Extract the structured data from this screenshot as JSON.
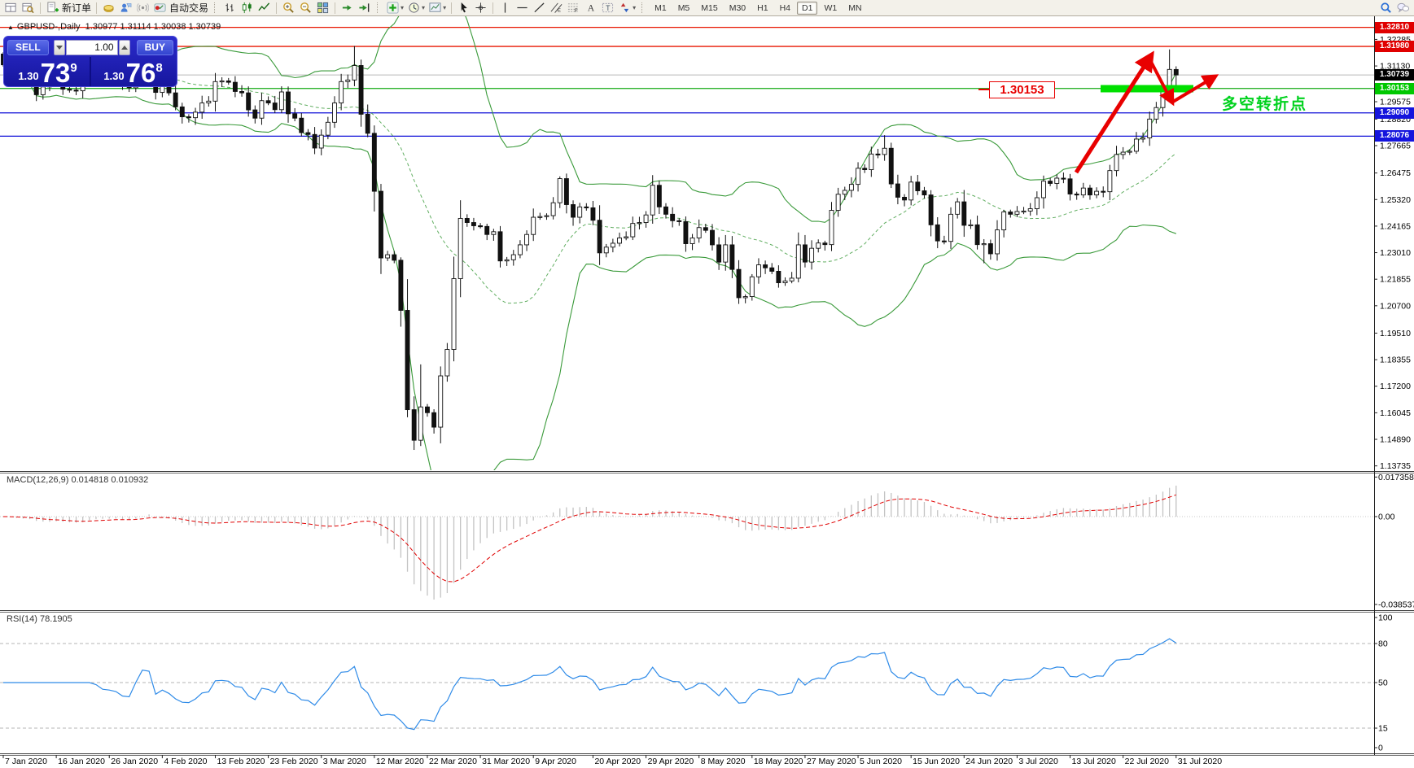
{
  "toolbar": {
    "groups": [
      {
        "items": [
          {
            "n": "new-chart-icon",
            "ic": "newchart"
          },
          {
            "n": "profiles-icon",
            "ic": "profiles"
          }
        ]
      },
      {
        "items": [
          {
            "n": "new-order-button",
            "ic": "neworder",
            "l": "新订单"
          }
        ]
      },
      {
        "items": [
          {
            "n": "metaeditor-icon",
            "ic": "sponge"
          },
          {
            "n": "community-icon",
            "ic": "person"
          },
          {
            "n": "news-icon",
            "ic": "broadcast"
          },
          {
            "n": "autotrade-button",
            "ic": "autotrade",
            "l": "自动交易"
          }
        ]
      },
      {
        "items": [
          {
            "n": "bar-chart-icon",
            "ic": "bars"
          },
          {
            "n": "candlestick-chart-icon",
            "ic": "candles"
          },
          {
            "n": "line-chart-icon",
            "ic": "linechart"
          }
        ]
      },
      {
        "items": [
          {
            "n": "zoom-in-icon",
            "ic": "zoomin"
          },
          {
            "n": "zoom-out-icon",
            "ic": "zoomout"
          },
          {
            "n": "tile-windows-icon",
            "ic": "tile"
          }
        ]
      },
      {
        "items": [
          {
            "n": "auto-scroll-icon",
            "ic": "autoscroll"
          },
          {
            "n": "chart-shift-icon",
            "ic": "shift"
          }
        ]
      },
      {
        "items": [
          {
            "n": "indicators-icon",
            "ic": "indicators",
            "dd": true
          },
          {
            "n": "periods-icon",
            "ic": "clock",
            "dd": true
          },
          {
            "n": "templates-icon",
            "ic": "template",
            "dd": true
          }
        ]
      },
      {
        "items": [
          {
            "n": "cursor-icon",
            "ic": "cursor"
          },
          {
            "n": "crosshair-icon",
            "ic": "crosshair"
          }
        ]
      },
      {
        "items": [
          {
            "n": "vline-icon",
            "ic": "vline"
          },
          {
            "n": "hline-icon",
            "ic": "hline"
          },
          {
            "n": "trendline-icon",
            "ic": "trendline"
          },
          {
            "n": "channel-icon",
            "ic": "channel"
          },
          {
            "n": "fibonacci-icon",
            "ic": "fibo"
          },
          {
            "n": "text-icon",
            "ic": "textA"
          },
          {
            "n": "label-icon",
            "ic": "labelT"
          },
          {
            "n": "arrows-icon",
            "ic": "arrowsTool",
            "dd": true
          }
        ]
      }
    ],
    "timeframes": {
      "items": [
        "M1",
        "M5",
        "M15",
        "M30",
        "H1",
        "H4",
        "D1",
        "W1",
        "MN"
      ],
      "active": "D1"
    },
    "right_icons": [
      {
        "n": "search-icon",
        "ic": "search"
      },
      {
        "n": "chat-icon",
        "ic": "chat"
      }
    ]
  },
  "chart": {
    "collapse_marker": "▲",
    "title_symbol": "GBPUSD-,Daily",
    "title_ohlc": "1.30977 1.31114 1.30038 1.30739"
  },
  "trade_panel": {
    "sell_label": "SELL",
    "buy_label": "BUY",
    "volume": "1.00",
    "sell_price": {
      "prefix": "1.30",
      "big": "73",
      "sup": "9"
    },
    "buy_price": {
      "prefix": "1.30",
      "big": "76",
      "sup": "8"
    }
  },
  "colors": {
    "line_red": "#e81600",
    "line_green": "#2db32d",
    "line_blue": "#0d0dd8",
    "current_price_line": "#b8b8b8",
    "badge_red": "#e00000",
    "badge_black": "#000000",
    "badge_green": "#00c800",
    "badge_blue": "#1414dd",
    "bollinger_green": "#3a9a3a",
    "candle_up": "#ffffff",
    "candle_down": "#111111",
    "macd_histogram": "#c3c3c3",
    "macd_signal": "#e00000",
    "rsi_blue": "#2f8be8",
    "annotation_red": "#e80000",
    "annotation_green": "#00e000",
    "cn_text_green": "#00d21e"
  },
  "hlines": [
    {
      "price": 1.3281,
      "color_key": "line_red"
    },
    {
      "price": 1.3198,
      "color_key": "line_red"
    },
    {
      "price": 1.30739,
      "color_key": "current_price_line"
    },
    {
      "price": 1.30153,
      "color_key": "line_green"
    },
    {
      "price": 1.2909,
      "color_key": "line_blue"
    },
    {
      "price": 1.28076,
      "color_key": "line_blue"
    }
  ],
  "price_axis": {
    "badges": [
      {
        "text": "1.32810",
        "price": 1.3281,
        "bg": "badge_red"
      },
      {
        "text": "1.31980",
        "price": 1.3198,
        "bg": "badge_red"
      },
      {
        "text": "1.30739",
        "price": 1.30739,
        "bg": "badge_black"
      },
      {
        "text": "1.30153",
        "price": 1.30153,
        "bg": "badge_green"
      },
      {
        "text": "1.29090",
        "price": 1.2909,
        "bg": "badge_blue"
      },
      {
        "text": "1.28076",
        "price": 1.28076,
        "bg": "badge_blue"
      }
    ],
    "ticks": [
      "1.32285",
      "1.31130",
      "1.29575",
      "1.28820",
      "1.27665",
      "1.26475",
      "1.25320",
      "1.24165",
      "1.23010",
      "1.21855",
      "1.20700",
      "1.19510",
      "1.18355",
      "1.17200",
      "1.16045",
      "1.14890",
      "1.13735"
    ]
  },
  "annotations": {
    "price_callout": "1.30153",
    "turning_point_text": "多空转折点"
  },
  "macd": {
    "label": "MACD(12,26,9) 0.014818 0.010932",
    "axis_labels": [
      "0.017358",
      "0.00",
      "-0.038537"
    ]
  },
  "rsi": {
    "label": "RSI(14) 78.1905",
    "axis_labels": [
      100,
      80,
      50,
      15,
      0
    ],
    "dashed_levels": [
      80,
      50,
      15
    ]
  },
  "dates": [
    {
      "t": "7 Jan 2020",
      "i": 0
    },
    {
      "t": "16 Jan 2020",
      "i": 8
    },
    {
      "t": "26 Jan 2020",
      "i": 16
    },
    {
      "t": "4 Feb 2020",
      "i": 24
    },
    {
      "t": "13 Feb 2020",
      "i": 32
    },
    {
      "t": "23 Feb 2020",
      "i": 40
    },
    {
      "t": "3 Mar 2020",
      "i": 48
    },
    {
      "t": "12 Mar 2020",
      "i": 56
    },
    {
      "t": "22 Mar 2020",
      "i": 64
    },
    {
      "t": "31 Mar 2020",
      "i": 72
    },
    {
      "t": "9 Apr 2020",
      "i": 80
    },
    {
      "t": "20 Apr 2020",
      "i": 89
    },
    {
      "t": "29 Apr 2020",
      "i": 97
    },
    {
      "t": "8 May 2020",
      "i": 105
    },
    {
      "t": "18 May 2020",
      "i": 113
    },
    {
      "t": "27 May 2020",
      "i": 121
    },
    {
      "t": "5 Jun 2020",
      "i": 129
    },
    {
      "t": "15 Jun 2020",
      "i": 137
    },
    {
      "t": "24 Jun 2020",
      "i": 145
    },
    {
      "t": "3 Jul 2020",
      "i": 153
    },
    {
      "t": "13 Jul 2020",
      "i": 161
    },
    {
      "t": "22 Jul 2020",
      "i": 169
    },
    {
      "t": "31 Jul 2020",
      "i": 177
    }
  ],
  "chart_data": {
    "type": "candlestick",
    "symbol": "GBPUSD",
    "timeframe": "Daily",
    "last_bar_ohlc": {
      "open": 1.30977,
      "high": 1.31114,
      "low": 1.30038,
      "close": 1.30739
    },
    "indicators": [
      "Bollinger Bands(20,2)",
      "MACD(12,26,9)",
      "RSI(14)"
    ],
    "price_range_visible": [
      1.13735,
      1.3329
    ],
    "first_open": 1.3165,
    "closes": [
      1.3118,
      1.31,
      1.3068,
      1.3062,
      1.3058,
      1.2988,
      1.3022,
      1.304,
      1.3078,
      1.3012,
      1.3008,
      1.3005,
      1.3048,
      1.3128,
      1.3104,
      1.3072,
      1.3066,
      1.3056,
      1.3024,
      1.3018,
      1.3095,
      1.3188,
      1.3182,
      1.2998,
      1.303,
      1.2996,
      1.2935,
      1.2892,
      1.2888,
      1.2912,
      1.2952,
      1.296,
      1.3045,
      1.3048,
      1.3042,
      1.3002,
      1.2996,
      1.2922,
      1.2886,
      1.2962,
      1.2952,
      1.2923,
      1.3,
      1.2905,
      1.2886,
      1.2823,
      1.2815,
      1.2756,
      1.2812,
      1.2868,
      1.2952,
      1.3045,
      1.3052,
      1.3115,
      1.2903,
      1.282,
      1.2568,
      1.2278,
      1.2292,
      1.2268,
      1.205,
      1.1618,
      1.1485,
      1.163,
      1.1605,
      1.1542,
      1.1765,
      1.188,
      1.2188,
      1.245,
      1.2432,
      1.2418,
      1.2415,
      1.238,
      1.2392,
      1.2265,
      1.227,
      1.2292,
      1.2335,
      1.238,
      1.2455,
      1.2458,
      1.2462,
      1.2518,
      1.2623,
      1.251,
      1.2455,
      1.25,
      1.2496,
      1.2442,
      1.23,
      1.2325,
      1.2342,
      1.2365,
      1.237,
      1.2428,
      1.2432,
      1.2465,
      1.2594,
      1.25,
      1.2468,
      1.244,
      1.2436,
      1.234,
      1.2365,
      1.241,
      1.2398,
      1.2335,
      1.226,
      1.2335,
      1.2228,
      1.2105,
      1.211,
      1.2196,
      1.2248,
      1.2235,
      1.222,
      1.217,
      1.2178,
      1.219,
      1.2335,
      1.226,
      1.232,
      1.2343,
      1.2336,
      1.2485,
      1.2555,
      1.2572,
      1.2598,
      1.2668,
      1.2662,
      1.273,
      1.2728,
      1.2755,
      1.26,
      1.2542,
      1.253,
      1.2608,
      1.257,
      1.2552,
      1.2422,
      1.2352,
      1.235,
      1.2468,
      1.2522,
      1.242,
      1.2422,
      1.2336,
      1.234,
      1.2296,
      1.24,
      1.2478,
      1.2468,
      1.248,
      1.2482,
      1.2492,
      1.254,
      1.2612,
      1.2602,
      1.2625,
      1.2622,
      1.2556,
      1.2552,
      1.2582,
      1.2552,
      1.2568,
      1.2566,
      1.2658,
      1.2728,
      1.2738,
      1.2742,
      1.2795,
      1.28,
      1.2882,
      1.2932,
      1.3,
      1.3098,
      1.30739
    ],
    "overrides": {
      "53": {
        "h": 1.32
      },
      "56": {
        "l": 1.248
      },
      "57": {
        "l": 1.2208,
        "h": 1.26
      },
      "61": {
        "l": 1.1585
      },
      "62": {
        "l": 1.1443
      },
      "63": {
        "h": 1.1815
      },
      "111": {
        "l": 1.2078
      },
      "133": {
        "h": 1.2812
      },
      "148": {
        "l": 1.2255
      },
      "176": {
        "h": 1.3185
      },
      "177": {
        "o": 1.30977,
        "h": 1.31114,
        "l": 1.30038,
        "c": 1.30739
      }
    }
  }
}
